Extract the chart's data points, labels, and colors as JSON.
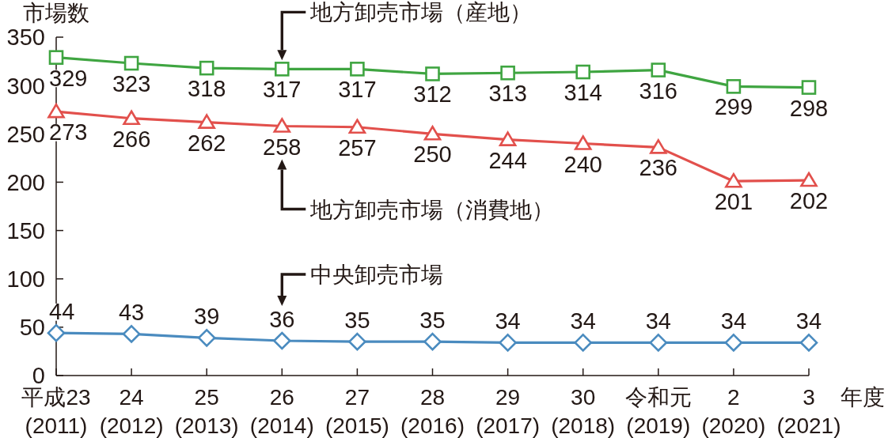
{
  "chart_data": {
    "type": "line",
    "ylabel": "市場数",
    "xlabel": "年度",
    "categories": [
      "平成23\n(2011)",
      "24\n(2012)",
      "25\n(2013)",
      "26\n(2014)",
      "27\n(2015)",
      "28\n(2016)",
      "29\n(2017)",
      "30\n(2018)",
      "令和元\n(2019)",
      "2\n(2020)",
      "3\n(2021)"
    ],
    "ylim": [
      0,
      350
    ],
    "yticks": [
      0,
      50,
      100,
      150,
      200,
      250,
      300,
      350
    ],
    "data_labels": true,
    "line_style": "solid",
    "series": [
      {
        "name": "地方卸売市場（産地）",
        "color": "#3fa541",
        "marker": "square",
        "values": [
          329,
          323,
          318,
          317,
          317,
          312,
          313,
          314,
          316,
          299,
          298
        ]
      },
      {
        "name": "地方卸売市場（消費地）",
        "color": "#e2504c",
        "marker": "triangle",
        "values": [
          273,
          266,
          262,
          258,
          257,
          250,
          244,
          240,
          236,
          201,
          202
        ]
      },
      {
        "name": "中央卸売市場",
        "color": "#4a8bbf",
        "marker": "diamond",
        "values": [
          44,
          43,
          39,
          36,
          35,
          35,
          34,
          34,
          34,
          34,
          34
        ]
      }
    ]
  }
}
